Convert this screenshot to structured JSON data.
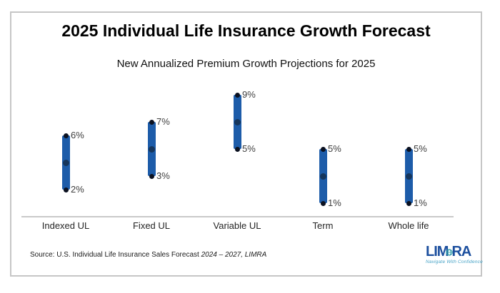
{
  "header": {
    "title": "2025 Individual Life Insurance Growth Forecast",
    "subtitle": "New Annualized Premium Growth Projections for 2025"
  },
  "chart_data": {
    "type": "bar",
    "subtype": "floating-range-bar",
    "title": "2025 Individual Life Insurance Growth Forecast",
    "subtitle": "New Annualized Premium Growth Projections for 2025",
    "categories": [
      "Indexed UL",
      "Fixed UL",
      "Variable UL",
      "Term",
      "Whole life"
    ],
    "series": [
      {
        "name": "New annualized premium growth projection range (%)",
        "low": [
          2,
          3,
          5,
          1,
          1
        ],
        "high": [
          6,
          7,
          9,
          5,
          5
        ],
        "mid": [
          4,
          5,
          7,
          3,
          3
        ]
      }
    ],
    "low_labels": [
      "2%",
      "3%",
      "5%",
      "1%",
      "1%"
    ],
    "high_labels": [
      "6%",
      "7%",
      "9%",
      "5%",
      "5%"
    ],
    "unit": "%",
    "xlabel": "",
    "ylabel": "",
    "ylim": [
      0,
      10
    ],
    "grid": false,
    "legend": false,
    "bar_color": "#1d5ca9",
    "end_marker_color": "#0b1120",
    "mid_marker_color": "#16365c",
    "axis_line_color": "#c9c9c9"
  },
  "footer": {
    "source_prefix": "Source: U.S. Individual Life Insurance Sales Forecast ",
    "source_italic": "2024 – 2027, LIMRA"
  },
  "logo": {
    "text": "LIMRA",
    "tagline": "Navigate With Confidence",
    "color": "#1c4f9e",
    "tagline_color": "#45a2c6"
  }
}
